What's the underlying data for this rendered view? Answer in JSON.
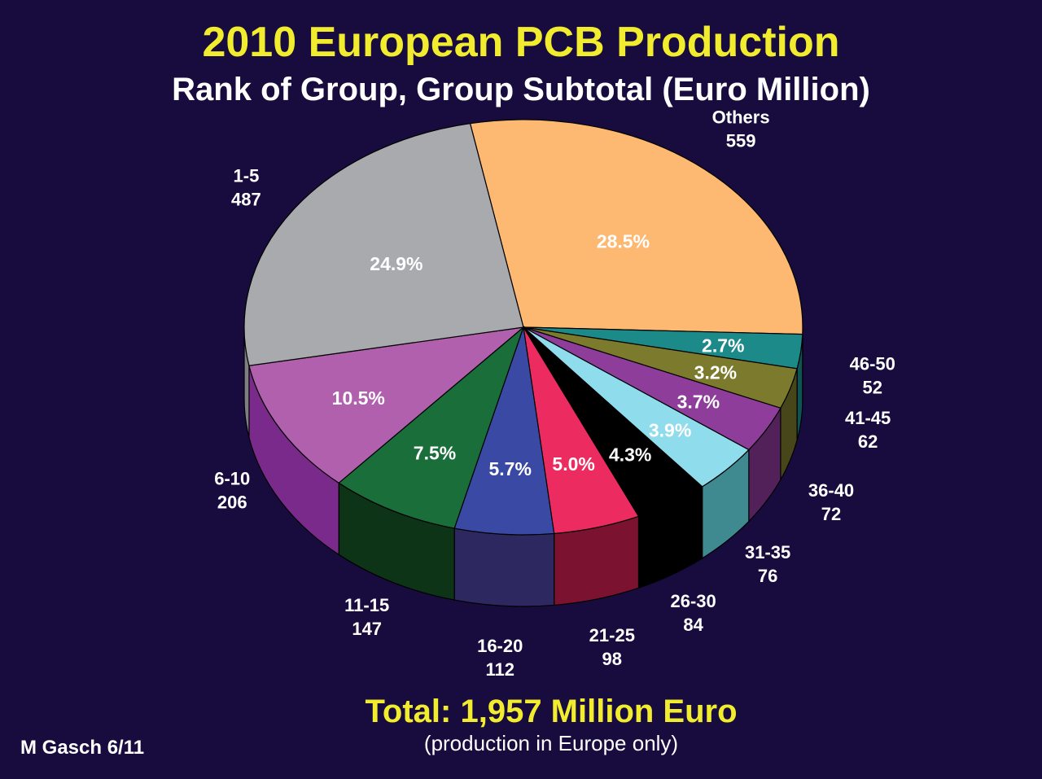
{
  "slide": {
    "title": "2010 European PCB Production",
    "subtitle": "Rank of Group, Group Subtotal (Euro Million)",
    "total": "Total: 1,957 Million Euro",
    "note": "(production in Europe only)",
    "author": "M Gasch 6/11"
  },
  "chart_data": {
    "type": "pie",
    "title": "2010 European PCB Production",
    "subtitle": "Rank of Group, Group Subtotal (Euro Million)",
    "total": 1957,
    "units": "Euro Million",
    "slices": [
      {
        "label": "Others",
        "value": 559,
        "percent": "28.5%",
        "color": "#fdb872",
        "side": "#c98a4c",
        "pct_color": "#ffffff"
      },
      {
        "label": "46-50",
        "value": 52,
        "percent": "2.7%",
        "color": "#1d8a8a",
        "side": "#0e5454",
        "pct_color": "#ffffff"
      },
      {
        "label": "41-45",
        "value": 62,
        "percent": "3.2%",
        "color": "#7c7a2c",
        "side": "#47461a",
        "pct_color": "#ffffff"
      },
      {
        "label": "36-40",
        "value": 72,
        "percent": "3.7%",
        "color": "#8e3d9a",
        "side": "#52215a",
        "pct_color": "#ffffff"
      },
      {
        "label": "31-35",
        "value": 76,
        "percent": "3.9%",
        "color": "#8fdcec",
        "side": "#3f8a90",
        "pct_color": "#ffffff"
      },
      {
        "label": "26-30",
        "value": 84,
        "percent": "4.3%",
        "color": "#000000",
        "side": "#000000",
        "pct_color": "#ffffff"
      },
      {
        "label": "21-25",
        "value": 98,
        "percent": "5.0%",
        "color": "#ec2c61",
        "side": "#7a1230",
        "pct_color": "#ffffff"
      },
      {
        "label": "16-20",
        "value": 112,
        "percent": "5.7%",
        "color": "#3a4aa4",
        "side": "#2e2860",
        "pct_color": "#ffffff"
      },
      {
        "label": "11-15",
        "value": 147,
        "percent": "7.5%",
        "color": "#1a6e3a",
        "side": "#0e3418",
        "pct_color": "#ffffff"
      },
      {
        "label": "6-10",
        "value": 206,
        "percent": "10.5%",
        "color": "#b060ac",
        "side": "#7a2a8a",
        "pct_color": "#ffffff"
      },
      {
        "label": "1-5",
        "value": 487,
        "percent": "24.9%",
        "color": "#a8aaae",
        "side": "#7d7f84",
        "pct_color": "#ffffff"
      }
    ]
  }
}
